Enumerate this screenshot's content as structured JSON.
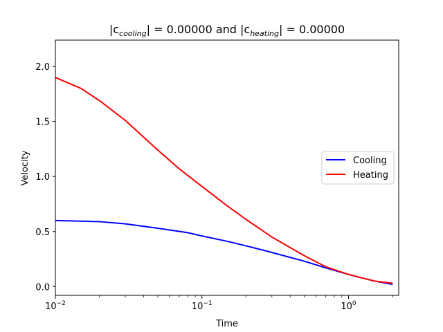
{
  "chart_data": {
    "type": "line",
    "title": {
      "prefix": "|c",
      "sub1": "cooling",
      "middle": "| = 0.00000 and |c",
      "sub2": "heating",
      "suffix": "| = 0.00000"
    },
    "xlabel": "Time",
    "ylabel": "Velocity",
    "xscale": "log",
    "xlim": [
      0.01,
      2.2
    ],
    "ylim": [
      -0.08,
      2.24
    ],
    "x_ticks": [
      {
        "value": 0.01,
        "base": "10",
        "exp": "−2"
      },
      {
        "value": 0.1,
        "base": "10",
        "exp": "−1"
      },
      {
        "value": 1,
        "base": "10",
        "exp": "0"
      }
    ],
    "y_ticks": [
      {
        "value": 0.0,
        "label": "0.0"
      },
      {
        "value": 0.5,
        "label": "0.5"
      },
      {
        "value": 1.0,
        "label": "1.0"
      },
      {
        "value": 1.5,
        "label": "1.5"
      },
      {
        "value": 2.0,
        "label": "2.0"
      }
    ],
    "grid": false,
    "legend_position": "center-right",
    "series": [
      {
        "name": "Cooling",
        "color": "#0000ff",
        "x": [
          0.01,
          0.02,
          0.03,
          0.05,
          0.08,
          0.1,
          0.15,
          0.2,
          0.3,
          0.5,
          0.7,
          1.0,
          1.5,
          2.0
        ],
        "y": [
          0.6,
          0.59,
          0.57,
          0.53,
          0.49,
          0.46,
          0.41,
          0.37,
          0.31,
          0.23,
          0.17,
          0.11,
          0.05,
          0.02
        ]
      },
      {
        "name": "Heating",
        "color": "#ff0000",
        "x": [
          0.01,
          0.015,
          0.02,
          0.03,
          0.05,
          0.07,
          0.1,
          0.15,
          0.2,
          0.3,
          0.5,
          0.7,
          1.0,
          1.5,
          2.0
        ],
        "y": [
          1.9,
          1.8,
          1.69,
          1.51,
          1.24,
          1.07,
          0.91,
          0.73,
          0.61,
          0.45,
          0.28,
          0.18,
          0.11,
          0.05,
          0.03
        ]
      }
    ]
  }
}
